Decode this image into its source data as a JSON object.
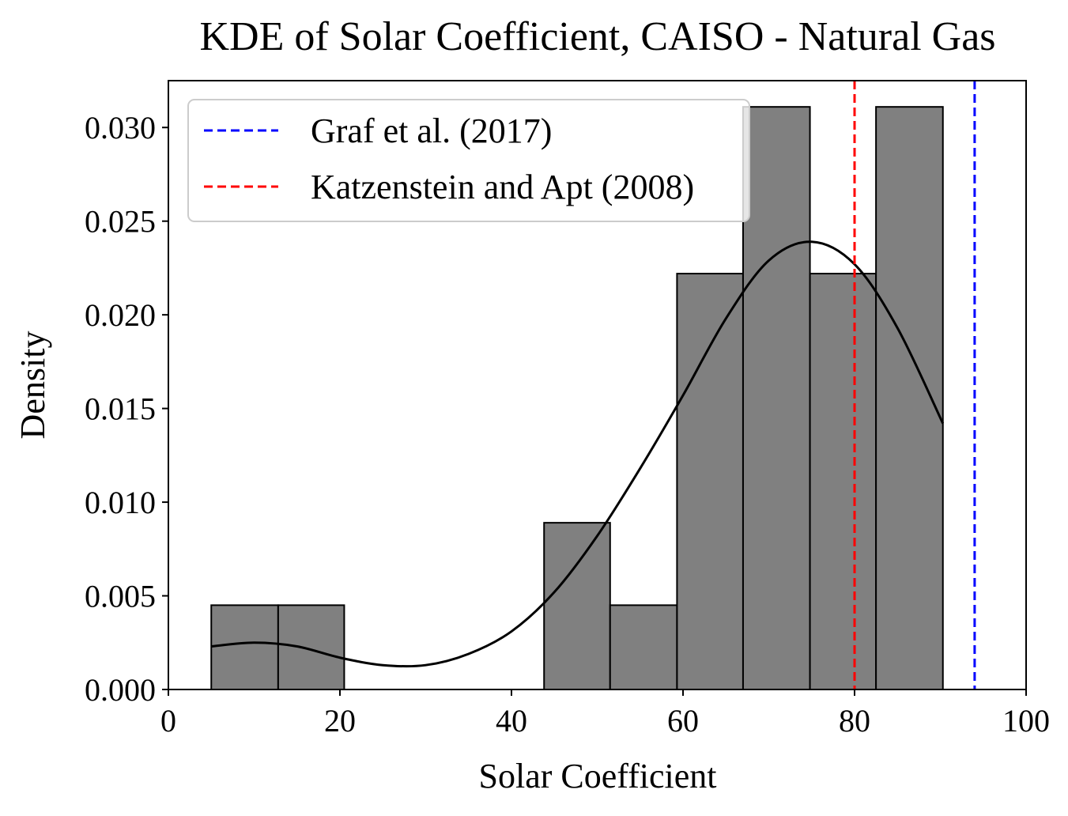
{
  "chart_data": {
    "type": "bar",
    "title": "KDE of Solar Coefficient, CAISO - Natural Gas",
    "xlabel": "Solar Coefficient",
    "ylabel": "Density",
    "xlim": [
      0,
      100
    ],
    "ylim": [
      0,
      0.0325
    ],
    "x_ticks": [
      0,
      20,
      40,
      60,
      80,
      100
    ],
    "x_tick_labels": [
      "0",
      "20",
      "40",
      "60",
      "80",
      "100"
    ],
    "y_ticks": [
      0,
      0.005,
      0.01,
      0.015,
      0.02,
      0.025,
      0.03
    ],
    "y_tick_labels": [
      "0.000",
      "0.005",
      "0.010",
      "0.015",
      "0.020",
      "0.025",
      "0.030"
    ],
    "grid": false,
    "legend_position": "top-left",
    "histogram": {
      "bin_edges": [
        5.0,
        12.8,
        20.5,
        28.3,
        36.0,
        43.8,
        51.5,
        59.3,
        67.0,
        74.8,
        82.5,
        90.3
      ],
      "densities": [
        0.0045,
        0.0045,
        0,
        0,
        0,
        0.0089,
        0.0045,
        0.0222,
        0.0311,
        0.0222,
        0.0311
      ],
      "fill_color": "#808080",
      "edge_color": "#000000"
    },
    "kde": {
      "color": "#000000",
      "x": [
        5,
        10,
        15,
        20,
        25,
        30,
        35,
        40,
        45,
        50,
        55,
        60,
        65,
        70,
        75,
        80,
        85,
        90.3
      ],
      "y": [
        0.0023,
        0.0025,
        0.0023,
        0.0017,
        0.0013,
        0.0013,
        0.0019,
        0.0031,
        0.0052,
        0.0082,
        0.0118,
        0.0157,
        0.0198,
        0.0229,
        0.0239,
        0.0227,
        0.0193,
        0.0142
      ]
    },
    "reference_lines": [
      {
        "name": "Graf et al. (2017)",
        "x": 94.0,
        "color": "#0000ff",
        "style": "dashed"
      },
      {
        "name": "Katzenstein and Apt (2008)",
        "x": 80.0,
        "color": "#ff0000",
        "style": "dashed"
      }
    ]
  }
}
